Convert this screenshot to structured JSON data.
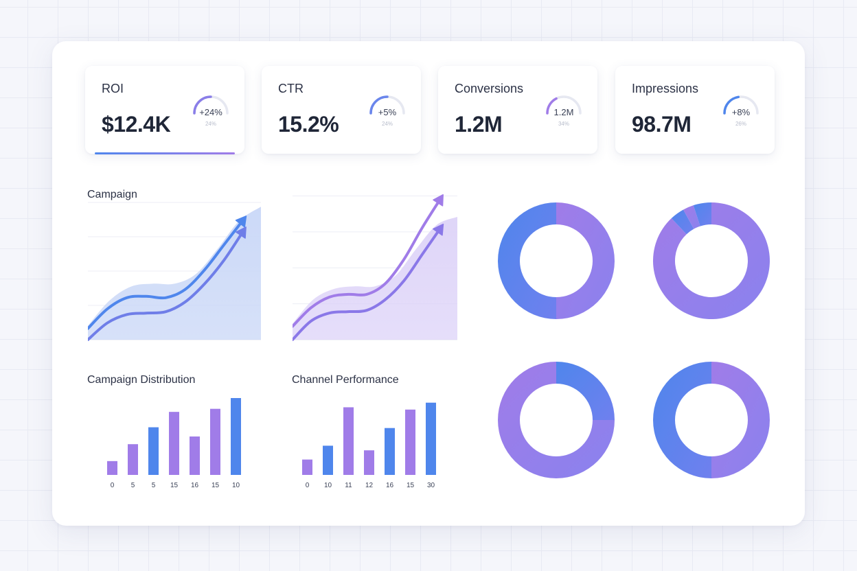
{
  "colors": {
    "blue": "#4f86ec",
    "purple": "#a07ce8",
    "blue_fill": "#c9d7f7",
    "purple_fill": "#ddd3f8"
  },
  "kpis": [
    {
      "label": "ROI",
      "value": "$12.4K",
      "delta": "+24%",
      "sub": "24%",
      "progress": 0.5,
      "gauge_color": "#8a7ee8",
      "active": true
    },
    {
      "label": "CTR",
      "value": "15.2%",
      "delta": "+5%",
      "sub": "24%",
      "progress": 0.5,
      "gauge_color": "#6a86ec",
      "active": false
    },
    {
      "label": "Conversions",
      "value": "1.2M",
      "delta": "1.2M",
      "sub": "34%",
      "progress": 0.35,
      "gauge_color": "#a07ce8",
      "active": false
    },
    {
      "label": "Impressions",
      "value": "98.7M",
      "delta": "+8%",
      "sub": "26%",
      "progress": 0.45,
      "gauge_color": "#4f86ec",
      "active": false
    }
  ],
  "sections": {
    "campaign_title": "Campaign",
    "distribution_title": "Campaign Distribution",
    "channel_title": "Channel Performance"
  },
  "chart_data": [
    {
      "type": "area",
      "title": "Campaign",
      "x": [
        0,
        1,
        2,
        3,
        4,
        5,
        6,
        7,
        8
      ],
      "series": [
        {
          "values": [
            8,
            22,
            30,
            31,
            30,
            36,
            50,
            68,
            86
          ]
        },
        {
          "values": [
            0,
            12,
            18,
            19,
            20,
            27,
            40,
            57,
            78
          ]
        }
      ],
      "area": [
        10,
        28,
        38,
        40,
        40,
        47,
        65,
        85,
        95
      ],
      "ylim": [
        0,
        100
      ],
      "gridlines": true
    },
    {
      "type": "area",
      "x": [
        0,
        1,
        2,
        3,
        4,
        5,
        6,
        7,
        8
      ],
      "series": [
        {
          "values": [
            10,
            24,
            32,
            34,
            34,
            42,
            60,
            84,
            106
          ]
        },
        {
          "values": [
            0,
            14,
            20,
            21,
            22,
            30,
            44,
            64,
            84
          ]
        }
      ],
      "area": [
        12,
        30,
        38,
        40,
        40,
        48,
        68,
        86,
        92
      ],
      "ylim": [
        0,
        110
      ],
      "gridlines": true
    },
    {
      "type": "bar",
      "title": "Campaign Distribution",
      "categories": [
        "0",
        "5",
        "5",
        "15",
        "16",
        "15",
        "10"
      ],
      "values": [
        18,
        40,
        62,
        82,
        50,
        86,
        100
      ],
      "ylim": [
        0,
        100
      ]
    },
    {
      "type": "bar",
      "title": "Channel Performance",
      "categories": [
        "0",
        "10",
        "11",
        "12",
        "16",
        "15",
        "30"
      ],
      "values": [
        20,
        38,
        88,
        32,
        61,
        85,
        94
      ],
      "ylim": [
        0,
        100
      ]
    },
    {
      "type": "pie",
      "values": [
        50,
        50
      ]
    },
    {
      "type": "pie",
      "values": [
        88,
        4,
        3,
        5
      ]
    },
    {
      "type": "pie",
      "values": [
        25,
        75
      ]
    },
    {
      "type": "pie",
      "values": [
        50,
        50
      ]
    }
  ]
}
